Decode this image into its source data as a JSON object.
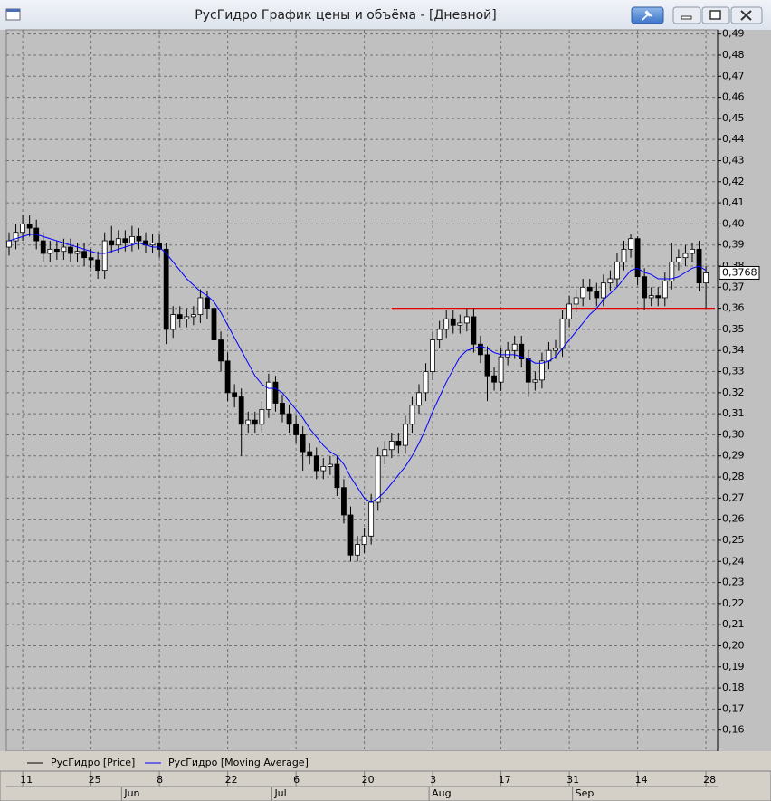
{
  "chart_data": {
    "type": "candlestick",
    "title": "РусГидро График цены и объёма - [Дневной]",
    "categories": [
      null,
      null,
      "11",
      null,
      null,
      null,
      null,
      null,
      null,
      null,
      null,
      null,
      "25",
      null,
      null,
      null,
      null,
      null,
      null,
      null,
      null,
      null,
      "8",
      null,
      null,
      null,
      null,
      null,
      null,
      null,
      null,
      null,
      "22",
      null,
      null,
      null,
      null,
      null,
      null,
      null,
      null,
      null,
      "6",
      null,
      null,
      null,
      null,
      null,
      null,
      null,
      null,
      null,
      "20",
      null,
      null,
      null,
      null,
      null,
      null,
      null,
      null,
      null,
      "3",
      null,
      null,
      null,
      null,
      null,
      null,
      null,
      null,
      null,
      "17",
      null,
      null,
      null,
      null,
      null,
      null,
      null,
      null,
      null,
      "31",
      null,
      null,
      null,
      null,
      null,
      null,
      null,
      null,
      null,
      "14",
      null,
      null,
      null,
      null,
      null,
      null,
      null,
      null,
      null,
      "28"
    ],
    "months": [
      null,
      null,
      null,
      null,
      null,
      null,
      null,
      null,
      null,
      null,
      null,
      null,
      null,
      null,
      null,
      null,
      null,
      "Jun",
      null,
      null,
      null,
      null,
      null,
      null,
      null,
      null,
      null,
      null,
      null,
      null,
      null,
      null,
      null,
      null,
      null,
      null,
      null,
      null,
      null,
      "Jul",
      null,
      null,
      null,
      null,
      null,
      null,
      null,
      null,
      null,
      null,
      null,
      null,
      null,
      null,
      null,
      null,
      null,
      null,
      null,
      null,
      null,
      null,
      "Aug",
      null,
      null,
      null,
      null,
      null,
      null,
      null,
      null,
      null,
      null,
      null,
      null,
      null,
      null,
      null,
      null,
      null,
      null,
      null,
      null,
      "Sep",
      null,
      null,
      null,
      null,
      null,
      null,
      null,
      null,
      null,
      null,
      null,
      null,
      null,
      null,
      null,
      null,
      null,
      null,
      null
    ],
    "series": [
      {
        "name": "РусГидро [Price]",
        "color": "#000000",
        "open": [
          0.389,
          0.392,
          0.396,
          0.4,
          0.398,
          0.392,
          0.386,
          0.388,
          0.387,
          0.389,
          0.386,
          0.387,
          0.384,
          0.383,
          0.378,
          0.392,
          0.39,
          0.393,
          0.391,
          0.394,
          0.392,
          0.39,
          0.391,
          0.388,
          0.35,
          0.357,
          0.355,
          0.356,
          0.357,
          0.365,
          0.36,
          0.345,
          0.335,
          0.32,
          0.318,
          0.305,
          0.307,
          0.305,
          0.312,
          0.325,
          0.315,
          0.31,
          0.305,
          0.3,
          0.292,
          0.29,
          0.283,
          0.285,
          0.286,
          0.275,
          0.262,
          0.243,
          0.248,
          0.252,
          0.268,
          0.29,
          0.293,
          0.297,
          0.295,
          0.305,
          0.314,
          0.32,
          0.33,
          0.345,
          0.35,
          0.355,
          0.352,
          0.353,
          0.356,
          0.343,
          0.338,
          0.328,
          0.325,
          0.337,
          0.34,
          0.343,
          0.336,
          0.325,
          0.326,
          0.335,
          0.34,
          0.341,
          0.355,
          0.362,
          0.365,
          0.37,
          0.368,
          0.365,
          0.372,
          0.374,
          0.382,
          0.388,
          0.393,
          0.375,
          0.365,
          0.366,
          0.365,
          0.373,
          0.382,
          0.384,
          0.386,
          0.388,
          0.372
        ],
        "high": [
          0.396,
          0.4,
          0.404,
          0.404,
          0.402,
          0.396,
          0.392,
          0.392,
          0.393,
          0.393,
          0.391,
          0.391,
          0.388,
          0.387,
          0.396,
          0.399,
          0.397,
          0.397,
          0.399,
          0.398,
          0.396,
          0.395,
          0.395,
          0.391,
          0.361,
          0.361,
          0.36,
          0.361,
          0.369,
          0.368,
          0.363,
          0.349,
          0.339,
          0.324,
          0.322,
          0.311,
          0.311,
          0.316,
          0.329,
          0.328,
          0.319,
          0.314,
          0.309,
          0.304,
          0.296,
          0.294,
          0.289,
          0.29,
          0.29,
          0.279,
          0.266,
          0.252,
          0.256,
          0.272,
          0.294,
          0.297,
          0.301,
          0.301,
          0.309,
          0.318,
          0.324,
          0.334,
          0.349,
          0.354,
          0.359,
          0.359,
          0.357,
          0.36,
          0.36,
          0.347,
          0.342,
          0.332,
          0.341,
          0.344,
          0.347,
          0.347,
          0.34,
          0.33,
          0.339,
          0.344,
          0.345,
          0.359,
          0.366,
          0.369,
          0.374,
          0.374,
          0.372,
          0.376,
          0.378,
          0.386,
          0.392,
          0.395,
          0.394,
          0.379,
          0.37,
          0.37,
          0.377,
          0.391,
          0.388,
          0.39,
          0.391,
          0.392,
          0.38
        ],
        "low": [
          0.385,
          0.388,
          0.392,
          0.394,
          0.388,
          0.382,
          0.382,
          0.383,
          0.383,
          0.382,
          0.382,
          0.38,
          0.379,
          0.374,
          0.374,
          0.386,
          0.386,
          0.387,
          0.387,
          0.388,
          0.386,
          0.386,
          0.384,
          0.343,
          0.346,
          0.351,
          0.351,
          0.352,
          0.353,
          0.355,
          0.341,
          0.33,
          0.316,
          0.313,
          0.29,
          0.301,
          0.301,
          0.301,
          0.308,
          0.311,
          0.306,
          0.301,
          0.296,
          0.283,
          0.286,
          0.279,
          0.279,
          0.281,
          0.271,
          0.258,
          0.24,
          0.24,
          0.244,
          0.248,
          0.264,
          0.286,
          0.289,
          0.291,
          0.291,
          0.301,
          0.31,
          0.316,
          0.326,
          0.341,
          0.346,
          0.348,
          0.348,
          0.349,
          0.339,
          0.334,
          0.316,
          0.321,
          0.321,
          0.333,
          0.336,
          0.332,
          0.318,
          0.321,
          0.322,
          0.331,
          0.336,
          0.337,
          0.351,
          0.358,
          0.361,
          0.364,
          0.361,
          0.361,
          0.368,
          0.37,
          0.378,
          0.384,
          0.371,
          0.359,
          0.361,
          0.361,
          0.361,
          0.369,
          0.378,
          0.38,
          0.382,
          0.368,
          0.36
        ],
        "close": [
          0.392,
          0.396,
          0.4,
          0.398,
          0.392,
          0.386,
          0.388,
          0.387,
          0.389,
          0.386,
          0.387,
          0.384,
          0.383,
          0.378,
          0.392,
          0.39,
          0.393,
          0.391,
          0.394,
          0.392,
          0.39,
          0.391,
          0.388,
          0.35,
          0.357,
          0.355,
          0.356,
          0.357,
          0.365,
          0.36,
          0.345,
          0.335,
          0.32,
          0.318,
          0.305,
          0.307,
          0.305,
          0.312,
          0.325,
          0.315,
          0.31,
          0.305,
          0.3,
          0.292,
          0.29,
          0.283,
          0.285,
          0.286,
          0.275,
          0.262,
          0.243,
          0.248,
          0.252,
          0.268,
          0.29,
          0.293,
          0.297,
          0.295,
          0.305,
          0.314,
          0.32,
          0.33,
          0.345,
          0.35,
          0.355,
          0.352,
          0.353,
          0.356,
          0.343,
          0.338,
          0.328,
          0.325,
          0.337,
          0.34,
          0.343,
          0.336,
          0.325,
          0.326,
          0.335,
          0.34,
          0.341,
          0.355,
          0.362,
          0.365,
          0.37,
          0.368,
          0.365,
          0.372,
          0.374,
          0.382,
          0.388,
          0.393,
          0.375,
          0.365,
          0.366,
          0.365,
          0.373,
          0.382,
          0.384,
          0.386,
          0.388,
          0.372,
          0.3768
        ],
        "last_label": "0,3768"
      },
      {
        "name": "РусГидро [Moving Average]",
        "color": "#0000ff",
        "values": [
          0.392,
          0.393,
          0.394,
          0.395,
          0.395,
          0.394,
          0.393,
          0.392,
          0.391,
          0.39,
          0.389,
          0.388,
          0.387,
          0.386,
          0.386,
          0.387,
          0.388,
          0.389,
          0.39,
          0.391,
          0.39,
          0.389,
          0.389,
          0.386,
          0.382,
          0.378,
          0.374,
          0.371,
          0.368,
          0.366,
          0.363,
          0.358,
          0.352,
          0.346,
          0.34,
          0.334,
          0.328,
          0.324,
          0.322,
          0.322,
          0.32,
          0.316,
          0.312,
          0.308,
          0.303,
          0.299,
          0.295,
          0.292,
          0.29,
          0.286,
          0.28,
          0.275,
          0.27,
          0.268,
          0.27,
          0.273,
          0.277,
          0.281,
          0.285,
          0.29,
          0.296,
          0.303,
          0.311,
          0.318,
          0.325,
          0.331,
          0.337,
          0.34,
          0.341,
          0.342,
          0.341,
          0.339,
          0.338,
          0.338,
          0.338,
          0.337,
          0.336,
          0.334,
          0.334,
          0.335,
          0.337,
          0.341,
          0.345,
          0.349,
          0.353,
          0.357,
          0.36,
          0.364,
          0.367,
          0.37,
          0.374,
          0.378,
          0.379,
          0.377,
          0.376,
          0.374,
          0.374,
          0.374,
          0.375,
          0.377,
          0.379,
          0.38,
          0.378
        ]
      }
    ],
    "hline": {
      "value": 0.36,
      "color": "#e00000",
      "from_category": 56
    },
    "ylim": [
      0.15,
      0.492
    ],
    "yticks": [
      {
        "value": 0.16,
        "label": "0,16"
      },
      {
        "value": 0.17,
        "label": "0,17"
      },
      {
        "value": 0.18,
        "label": "0,18"
      },
      {
        "value": 0.19,
        "label": "0,19"
      },
      {
        "value": 0.2,
        "label": "0,20"
      },
      {
        "value": 0.21,
        "label": "0,21"
      },
      {
        "value": 0.22,
        "label": "0,22"
      },
      {
        "value": 0.23,
        "label": "0,23"
      },
      {
        "value": 0.24,
        "label": "0,24"
      },
      {
        "value": 0.25,
        "label": "0,25"
      },
      {
        "value": 0.26,
        "label": "0,26"
      },
      {
        "value": 0.27,
        "label": "0,27"
      },
      {
        "value": 0.28,
        "label": "0,28"
      },
      {
        "value": 0.29,
        "label": "0,29"
      },
      {
        "value": 0.3,
        "label": "0,30"
      },
      {
        "value": 0.31,
        "label": "0,31"
      },
      {
        "value": 0.32,
        "label": "0,32"
      },
      {
        "value": 0.33,
        "label": "0,33"
      },
      {
        "value": 0.34,
        "label": "0,34"
      },
      {
        "value": 0.35,
        "label": "0,35"
      },
      {
        "value": 0.36,
        "label": "0,36"
      },
      {
        "value": 0.37,
        "label": "0,37"
      },
      {
        "value": 0.38,
        "label": "0,38"
      },
      {
        "value": 0.39,
        "label": "0,39"
      },
      {
        "value": 0.4,
        "label": "0,40"
      },
      {
        "value": 0.41,
        "label": "0,41"
      },
      {
        "value": 0.42,
        "label": "0,42"
      },
      {
        "value": 0.43,
        "label": "0,43"
      },
      {
        "value": 0.44,
        "label": "0,44"
      },
      {
        "value": 0.45,
        "label": "0,45"
      },
      {
        "value": 0.46,
        "label": "0,46"
      },
      {
        "value": 0.47,
        "label": "0,47"
      },
      {
        "value": 0.48,
        "label": "0,48"
      },
      {
        "value": 0.49,
        "label": "0,49"
      }
    ],
    "grid": true
  }
}
